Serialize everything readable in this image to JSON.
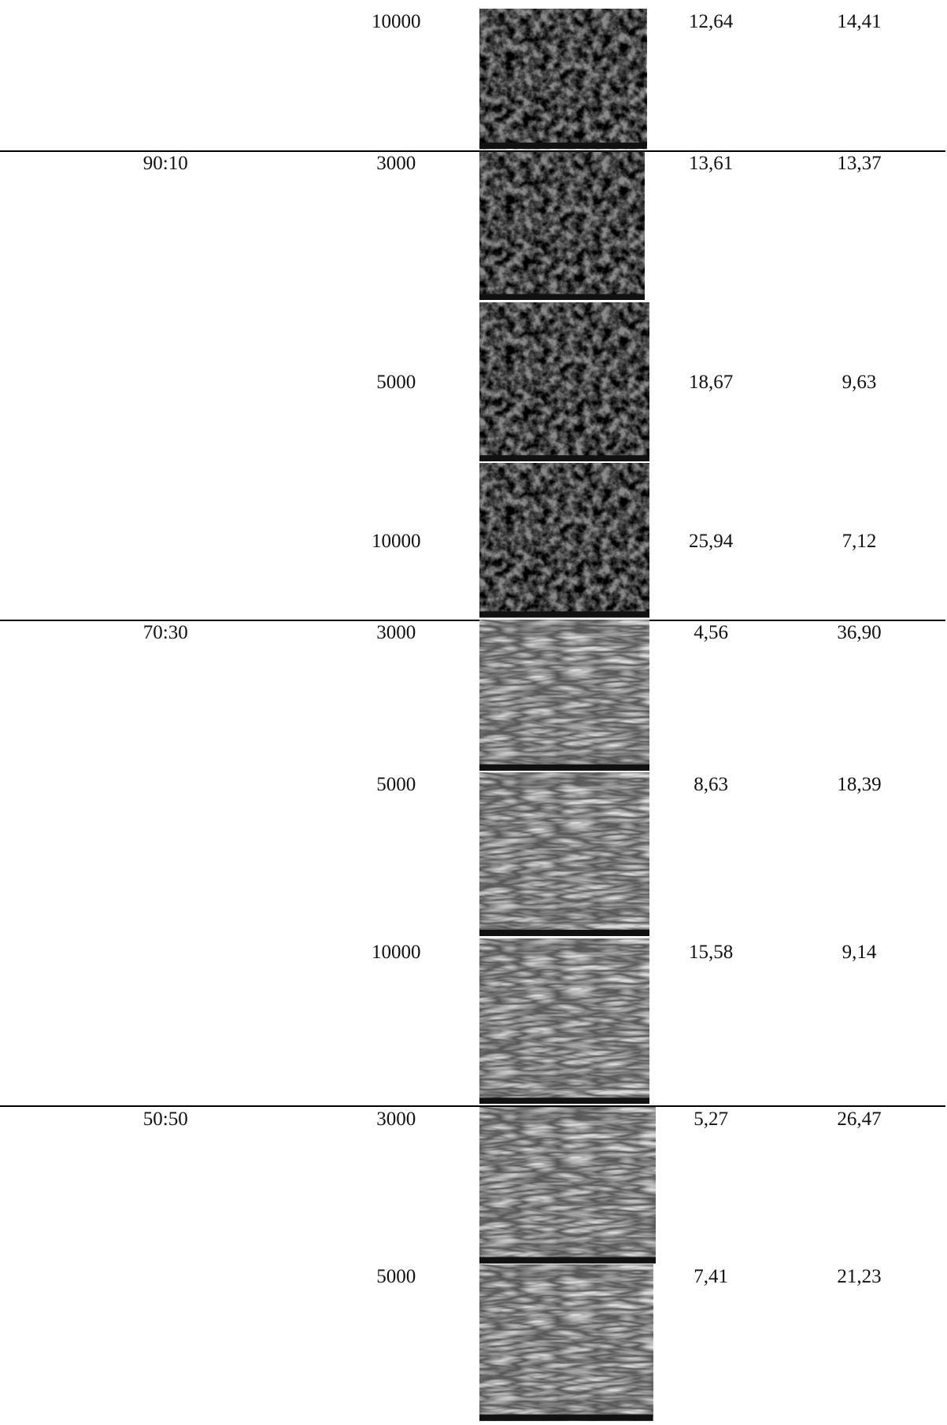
{
  "table": {
    "rows": [
      {
        "magnification": "10000",
        "value_1": "12,64",
        "value_2": "14,41"
      },
      {
        "group": "90:10",
        "magnification": "3000",
        "value_1": "13,61",
        "value_2": "13,37"
      },
      {
        "magnification": "5000",
        "value_1": "18,67",
        "value_2": "9,63"
      },
      {
        "magnification": "10000",
        "value_1": "25,94",
        "value_2": "7,12"
      },
      {
        "group": "70:30",
        "magnification": "3000",
        "value_1": "4,56",
        "value_2": "36,90"
      },
      {
        "magnification": "5000",
        "value_1": "8,63",
        "value_2": "18,39"
      },
      {
        "magnification": "10000",
        "value_1": "15,58",
        "value_2": "9,14"
      },
      {
        "group": "50:50",
        "magnification": "3000",
        "value_1": "5,27",
        "value_2": "26,47"
      },
      {
        "magnification": "5000",
        "value_1": "7,41",
        "value_2": "21,23"
      }
    ]
  }
}
